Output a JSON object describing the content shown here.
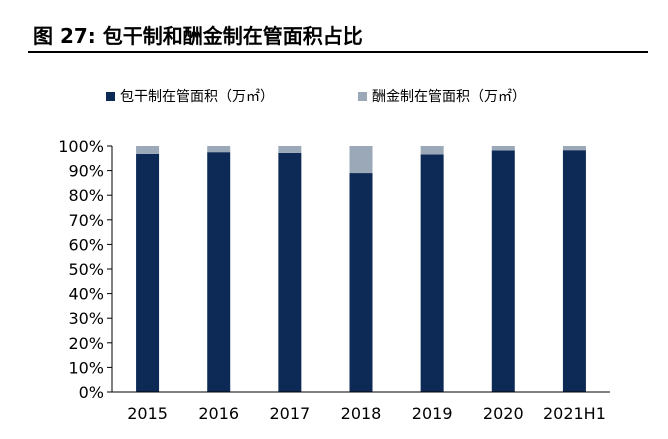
{
  "figure": {
    "title": "图 27:  包干制和酬金制在管面积占比"
  },
  "chart_data": {
    "type": "bar",
    "stacked": true,
    "categories": [
      "2015",
      "2016",
      "2017",
      "2018",
      "2019",
      "2020",
      "2021H1"
    ],
    "series": [
      {
        "name": "包干制在管面积（万㎡）",
        "color": "#0d2a57",
        "values": [
          96.8,
          97.5,
          97.2,
          89.0,
          96.6,
          98.2,
          98.3
        ]
      },
      {
        "name": "酬金制在管面积（万㎡）",
        "color": "#9ba8b8",
        "values": [
          3.2,
          2.5,
          2.8,
          11.0,
          3.4,
          1.8,
          1.7
        ]
      }
    ],
    "ylim": [
      0,
      100
    ],
    "yticks": [
      "0%",
      "10%",
      "20%",
      "30%",
      "40%",
      "50%",
      "60%",
      "70%",
      "80%",
      "90%",
      "100%"
    ],
    "legend_position": "top",
    "grid": false
  }
}
